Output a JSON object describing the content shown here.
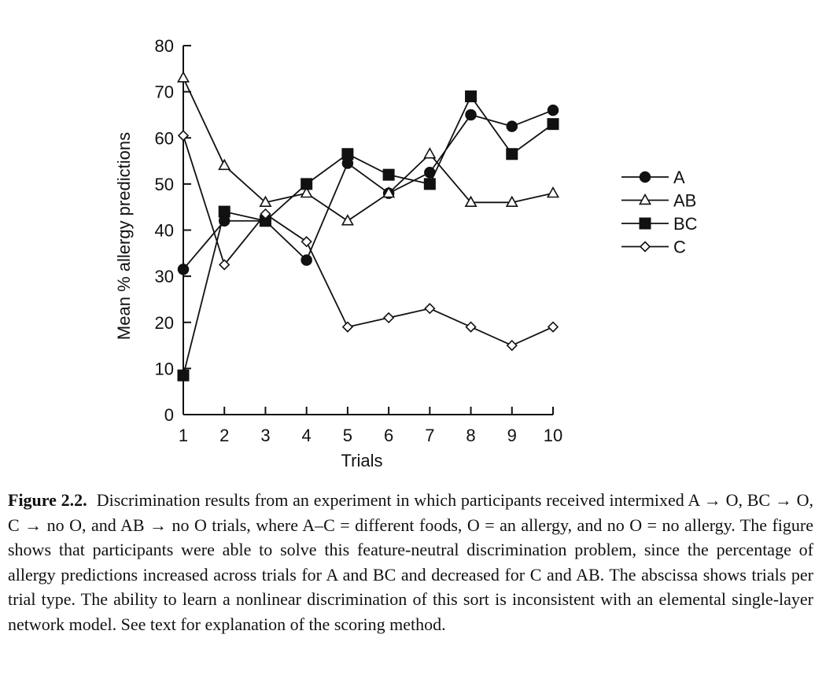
{
  "chart_data": {
    "type": "line",
    "title": "",
    "xlabel": "Trials",
    "ylabel": "Mean % allergy predictions",
    "x": [
      1,
      2,
      3,
      4,
      5,
      6,
      7,
      8,
      9,
      10
    ],
    "xlim": [
      1,
      10
    ],
    "ylim": [
      0,
      80
    ],
    "xticks": [
      "1",
      "2",
      "3",
      "4",
      "5",
      "6",
      "7",
      "8",
      "9",
      "10"
    ],
    "yticks": [
      "0",
      "10",
      "20",
      "30",
      "40",
      "50",
      "60",
      "70",
      "80"
    ],
    "grid": false,
    "legend_position": "right",
    "series": [
      {
        "name": "A",
        "marker": "filled-circle",
        "values": [
          31.5,
          42,
          42,
          33.5,
          54.5,
          48,
          52.5,
          65,
          62.5,
          66
        ]
      },
      {
        "name": "AB",
        "marker": "open-triangle",
        "values": [
          73,
          54,
          46,
          48,
          42,
          48,
          56.5,
          46,
          46,
          48
        ]
      },
      {
        "name": "BC",
        "marker": "filled-square",
        "values": [
          8.5,
          44,
          42,
          50,
          56.5,
          52,
          50,
          69,
          56.5,
          63
        ]
      },
      {
        "name": "C",
        "marker": "open-diamond",
        "values": [
          60.5,
          32.5,
          43.5,
          37.5,
          19,
          21,
          23,
          19,
          15,
          19
        ]
      }
    ]
  },
  "caption": {
    "label": "Figure 2.2.",
    "text": "Discrimination results from an experiment in which participants received intermixed A → O, BC → O, C → no O, and AB → no O trials, where A–C = different foods, O = an allergy, and no O = no allergy. The figure shows that participants were able to solve this feature-neutral discrimination problem, since the percentage of allergy predictions increased across trials for A and BC and decreased for C and AB. The abscissa shows trials per trial type. The ability to learn a nonlinear discrimination of this sort is inconsistent with an elemental single-layer network model. See text for explanation of the scoring method."
  }
}
